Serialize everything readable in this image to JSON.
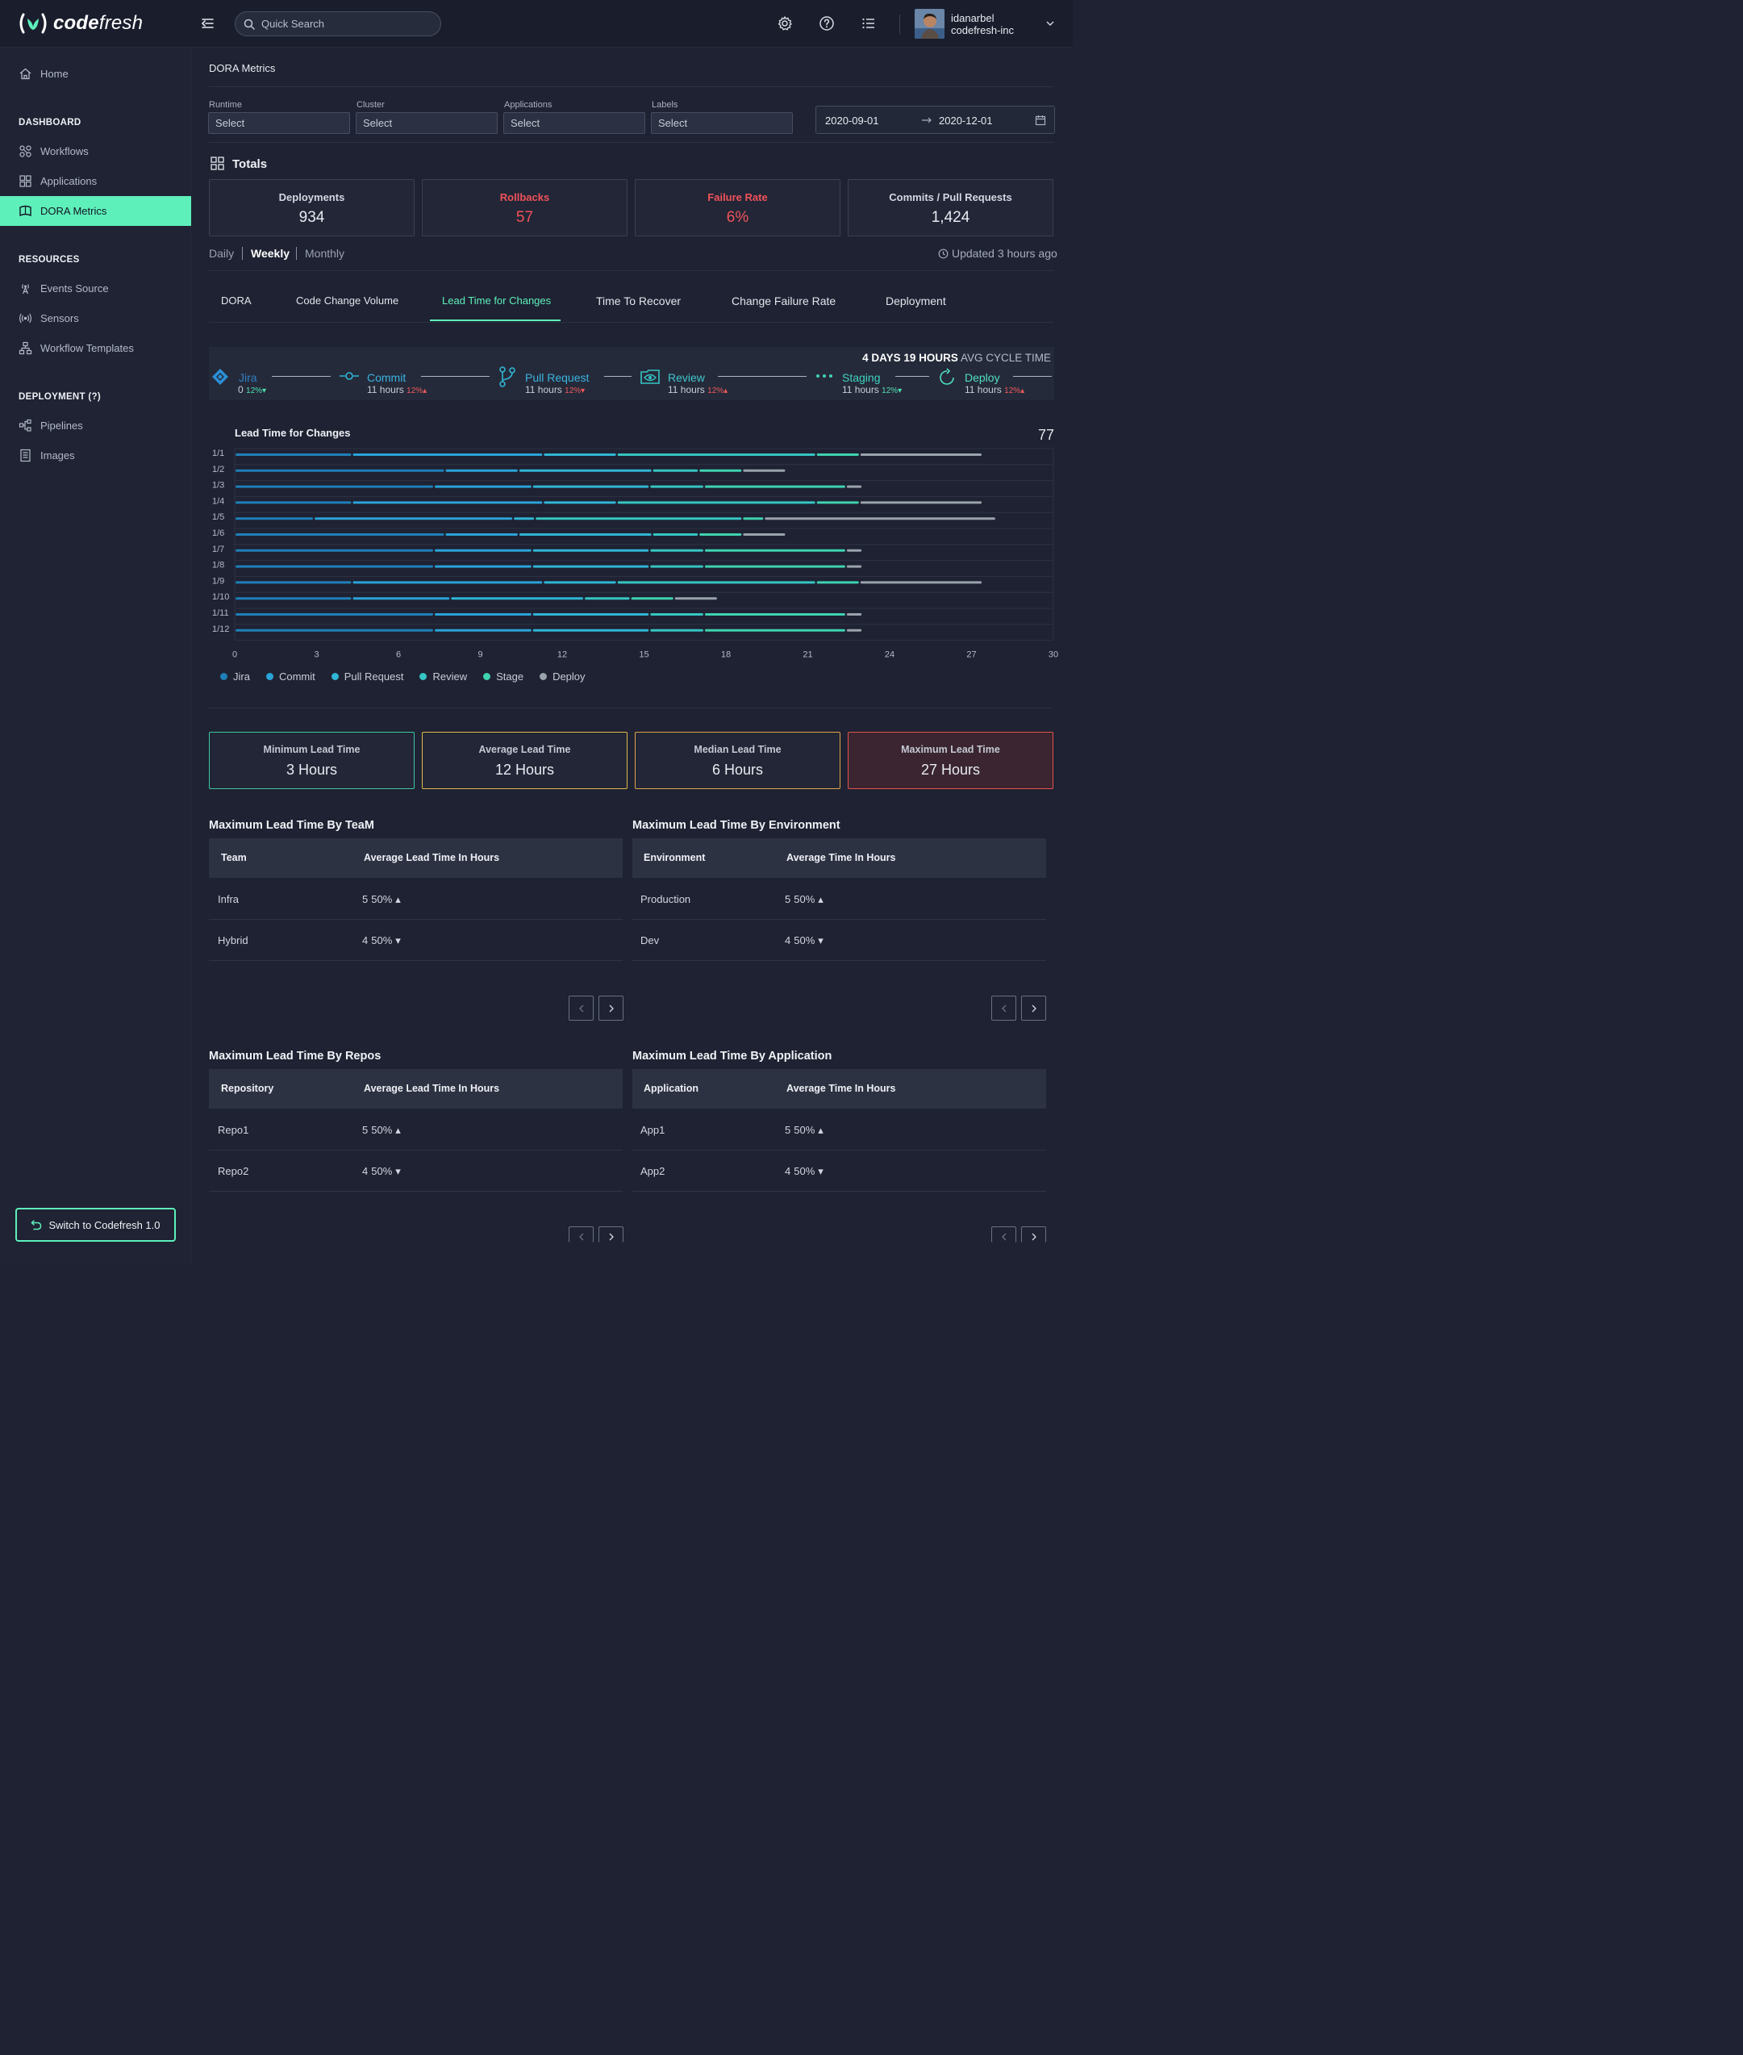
{
  "header": {
    "brand": "codefresh",
    "brand_bold": "code",
    "brand_light": "fresh",
    "search_placeholder": "Quick Search",
    "user_name": "idanarbel",
    "user_org": "codefresh-inc"
  },
  "sidebar": {
    "home": "Home",
    "sections": {
      "dashboard": "DASHBOARD",
      "resources": "RESOURCES",
      "deployment": "DEPLOYMENT (?)"
    },
    "dashboard_items": [
      "Workflows",
      "Applications",
      "DORA Metrics"
    ],
    "resources_items": [
      "Events Source",
      "Sensors",
      "Workflow Templates"
    ],
    "deployment_items": [
      "Pipelines",
      "Images"
    ],
    "switch_label": "Switch to Codefresh 1.0"
  },
  "page": {
    "title": "DORA Metrics",
    "filters": [
      {
        "label": "Runtime",
        "value": "Select"
      },
      {
        "label": "Cluster",
        "value": "Select"
      },
      {
        "label": "Applications",
        "value": "Select"
      },
      {
        "label": "Labels",
        "value": "Select"
      }
    ],
    "date_from": "2020-09-01",
    "date_to": "2020-12-01",
    "totals_title": "Totals",
    "totals": [
      {
        "label": "Deployments",
        "value": "934"
      },
      {
        "label": "Rollbacks",
        "value": "57"
      },
      {
        "label": "Failure Rate",
        "value": "6%"
      },
      {
        "label": "Commits / Pull Requests",
        "value": "1,424"
      }
    ],
    "periods": [
      "Daily",
      "Weekly",
      "Monthly"
    ],
    "selected_period": "Weekly",
    "updated": "Updated 3 hours ago",
    "tabs": [
      "DORA",
      "Code Change Volume",
      "Lead Time for Changes",
      "Time To Recover",
      "Change Failure Rate",
      "Deployment"
    ],
    "active_tab": "Lead Time for Changes"
  },
  "pipeline": {
    "cycle_value": "4  DAYS 19 HOURS",
    "cycle_label": "AVG CYCLE TIME",
    "stages": [
      {
        "name": "Jira",
        "time": "0",
        "pct": "12%",
        "trend": "down"
      },
      {
        "name": "Commit",
        "time": "11 hours",
        "pct": "12%",
        "trend": "up"
      },
      {
        "name": "Pull Request",
        "time": "11 hours",
        "pct": "12%",
        "trend": "down"
      },
      {
        "name": "Review",
        "time": "11 hours",
        "pct": "12%",
        "trend": "up"
      },
      {
        "name": "Staging",
        "time": "11 hours",
        "pct": "12%",
        "trend": "down"
      },
      {
        "name": "Deploy",
        "time": "11 hours",
        "pct": "12%",
        "trend": "up"
      }
    ]
  },
  "chart_data": {
    "type": "bar",
    "orientation": "horizontal-stacked",
    "title": "Lead Time for Changes",
    "total_label": "77",
    "categories": [
      "1/1",
      "1/2",
      "1/3",
      "1/4",
      "1/5",
      "1/6",
      "1/7",
      "1/8",
      "1/9",
      "1/10",
      "1/11",
      "1/12"
    ],
    "xlim": [
      0,
      30
    ],
    "xticks": [
      0,
      3,
      6,
      9,
      12,
      15,
      18,
      21,
      24,
      27,
      30
    ],
    "legend_position": "bottom-left",
    "series": [
      {
        "name": "Jira",
        "color": "#1f7fb8",
        "values": [
          4.3,
          7.7,
          7.3,
          4.3,
          2.9,
          7.7,
          7.3,
          7.3,
          4.3,
          4.3,
          7.3,
          7.3
        ]
      },
      {
        "name": "Commit",
        "color": "#2aa3d8",
        "values": [
          7.0,
          2.7,
          3.6,
          7.0,
          7.3,
          2.7,
          3.6,
          3.6,
          7.0,
          3.6,
          3.6,
          3.6
        ]
      },
      {
        "name": "Pull Request",
        "color": "#2fb6d4",
        "values": [
          2.7,
          4.9,
          4.3,
          2.7,
          0.8,
          4.9,
          4.3,
          4.3,
          2.7,
          4.9,
          4.3,
          4.3
        ]
      },
      {
        "name": "Review",
        "color": "#35c5c3",
        "values": [
          7.3,
          1.7,
          2.0,
          7.3,
          7.6,
          1.7,
          2.0,
          2.0,
          7.3,
          1.7,
          2.0,
          2.0
        ]
      },
      {
        "name": "Stage",
        "color": "#3fd3b0",
        "values": [
          1.6,
          1.6,
          5.2,
          1.6,
          0.8,
          1.6,
          5.2,
          5.2,
          1.6,
          1.6,
          5.2,
          5.2
        ]
      },
      {
        "name": "Deploy",
        "color": "#9aa3ad",
        "values": [
          4.5,
          1.6,
          0.6,
          4.5,
          8.5,
          1.6,
          0.6,
          0.6,
          4.5,
          1.6,
          0.6,
          0.6
        ]
      }
    ]
  },
  "lead_times": [
    {
      "label": "Minimum Lead Time",
      "value": "3 Hours",
      "color": "#3fc7a2"
    },
    {
      "label": "Average Lead Time",
      "value": "12 Hours",
      "color": "#e0b84a"
    },
    {
      "label": "Median Lead Time",
      "value": "6 Hours",
      "color": "#e0a44a"
    },
    {
      "label": "Maximum Lead Time",
      "value": "27 Hours",
      "color": "#e2544e"
    }
  ],
  "tables": {
    "team": {
      "title": "Maximum Lead Time By TeaM",
      "col1": "Team",
      "col2": "Average Lead Time In Hours",
      "rows": [
        {
          "name": "Infra",
          "value": "5",
          "pct": "50%",
          "trend": "up"
        },
        {
          "name": "Hybrid",
          "value": "4",
          "pct": "50%",
          "trend": "down"
        }
      ]
    },
    "environment": {
      "title": "Maximum Lead Time By Environment",
      "col1": "Environment",
      "col2": "Average Time In Hours",
      "rows": [
        {
          "name": "Production",
          "value": "5",
          "pct": "50%",
          "trend": "up"
        },
        {
          "name": "Dev",
          "value": "4",
          "pct": "50%",
          "trend": "down"
        }
      ]
    },
    "repos": {
      "title": "Maximum Lead Time By Repos",
      "col1": "Repository",
      "col2": "Average Lead Time In Hours",
      "rows": [
        {
          "name": "Repo1",
          "value": "5",
          "pct": "50%",
          "trend": "up"
        },
        {
          "name": "Repo2",
          "value": "4",
          "pct": "50%",
          "trend": "down"
        }
      ]
    },
    "application": {
      "title": "Maximum Lead Time By Application",
      "col1": "Application",
      "col2": "Average Time In Hours",
      "rows": [
        {
          "name": "App1",
          "value": "5",
          "pct": "50%",
          "trend": "up"
        },
        {
          "name": "App2",
          "value": "4",
          "pct": "50%",
          "trend": "down"
        }
      ]
    }
  }
}
